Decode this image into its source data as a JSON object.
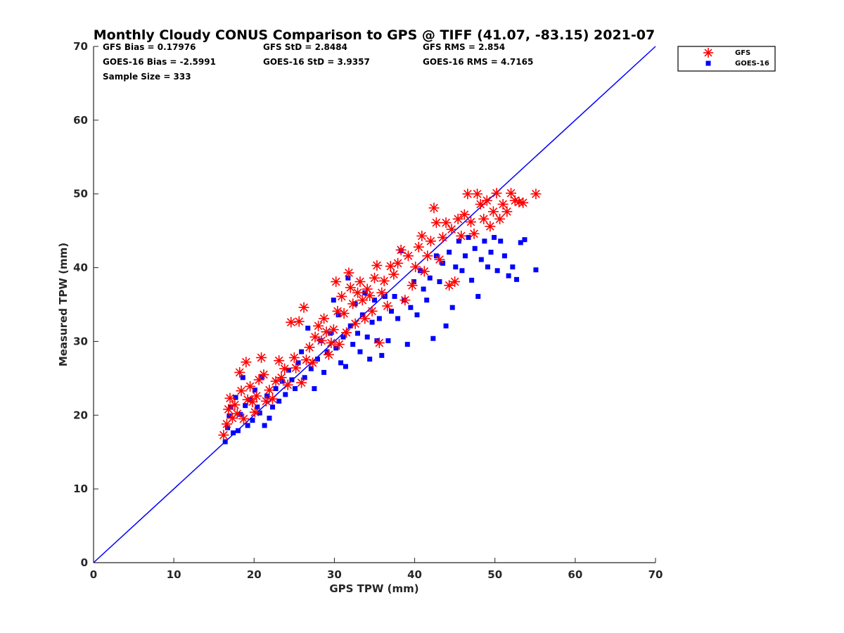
{
  "chart_data": {
    "type": "scatter",
    "title": "Monthly Cloudy CONUS Comparison to GPS @ TIFF (41.07, -83.15) 2021-07",
    "xlabel": "GPS TPW (mm)",
    "ylabel": "Measured TPW (mm)",
    "xlim": [
      0,
      70
    ],
    "ylim": [
      0,
      70
    ],
    "xticks": [
      "0",
      "10",
      "20",
      "30",
      "40",
      "50",
      "60",
      "70"
    ],
    "yticks": [
      "0",
      "10",
      "20",
      "30",
      "40",
      "50",
      "60",
      "70"
    ],
    "grid": false,
    "legend_placement": "outside-top-right",
    "reference_line": {
      "x": [
        0,
        70
      ],
      "y": [
        0,
        70
      ],
      "color": "#0000ff"
    },
    "stats": {
      "row1": [
        "GFS Bias = 0.17976",
        "GFS StD = 2.8484",
        "GFS RMS = 2.854"
      ],
      "row2": [
        "GOES-16 Bias = -2.5991",
        "GOES-16 StD = 3.9357",
        "GOES-16 RMS = 4.7165"
      ],
      "row3": [
        "Sample Size = 333"
      ]
    },
    "series": [
      {
        "name": "GFS",
        "marker": "asterisk",
        "color": "#ff0000",
        "points": [
          [
            16.2,
            17.3
          ],
          [
            16.6,
            18.8
          ],
          [
            16.8,
            20.8
          ],
          [
            17.0,
            22.3
          ],
          [
            17.3,
            19.6
          ],
          [
            17.6,
            21.4
          ],
          [
            17.9,
            20.2
          ],
          [
            18.2,
            25.8
          ],
          [
            18.4,
            23.3
          ],
          [
            18.7,
            19.5
          ],
          [
            19.0,
            27.2
          ],
          [
            19.2,
            22.1
          ],
          [
            19.5,
            23.9
          ],
          [
            19.8,
            21.8
          ],
          [
            20.1,
            20.4
          ],
          [
            20.3,
            22.6
          ],
          [
            20.6,
            24.8
          ],
          [
            20.9,
            27.8
          ],
          [
            21.2,
            25.5
          ],
          [
            21.5,
            21.9
          ],
          [
            21.9,
            23.4
          ],
          [
            22.3,
            22.2
          ],
          [
            22.7,
            24.6
          ],
          [
            23.1,
            27.4
          ],
          [
            23.4,
            25.1
          ],
          [
            23.8,
            26.3
          ],
          [
            24.2,
            24.1
          ],
          [
            24.6,
            32.6
          ],
          [
            25.0,
            27.8
          ],
          [
            25.2,
            26.4
          ],
          [
            25.6,
            32.7
          ],
          [
            25.9,
            24.4
          ],
          [
            26.2,
            34.6
          ],
          [
            26.5,
            27.5
          ],
          [
            26.9,
            29.2
          ],
          [
            27.3,
            27.1
          ],
          [
            27.6,
            30.6
          ],
          [
            28.0,
            32.1
          ],
          [
            28.4,
            30.1
          ],
          [
            28.7,
            33.1
          ],
          [
            29.0,
            31.3
          ],
          [
            29.3,
            28.2
          ],
          [
            29.6,
            29.8
          ],
          [
            29.9,
            31.6
          ],
          [
            30.2,
            38.1
          ],
          [
            30.4,
            34.1
          ],
          [
            30.6,
            29.6
          ],
          [
            30.9,
            36.1
          ],
          [
            31.2,
            33.8
          ],
          [
            31.5,
            31.2
          ],
          [
            31.8,
            39.3
          ],
          [
            32.0,
            37.3
          ],
          [
            32.3,
            35.1
          ],
          [
            32.6,
            32.4
          ],
          [
            32.9,
            36.6
          ],
          [
            33.2,
            38.1
          ],
          [
            33.5,
            35.6
          ],
          [
            33.8,
            33.1
          ],
          [
            34.1,
            37.1
          ],
          [
            34.4,
            36.2
          ],
          [
            34.7,
            34.1
          ],
          [
            35.0,
            38.6
          ],
          [
            35.3,
            40.3
          ],
          [
            35.6,
            29.8
          ],
          [
            35.9,
            36.6
          ],
          [
            36.2,
            38.2
          ],
          [
            36.6,
            34.8
          ],
          [
            37.0,
            40.2
          ],
          [
            37.4,
            39.1
          ],
          [
            37.9,
            40.6
          ],
          [
            38.3,
            42.4
          ],
          [
            38.8,
            35.6
          ],
          [
            39.2,
            41.6
          ],
          [
            39.7,
            37.6
          ],
          [
            40.1,
            40.1
          ],
          [
            40.5,
            42.8
          ],
          [
            40.9,
            44.3
          ],
          [
            41.2,
            39.5
          ],
          [
            41.6,
            41.6
          ],
          [
            42.0,
            43.6
          ],
          [
            42.4,
            48.1
          ],
          [
            42.7,
            46.1
          ],
          [
            43.1,
            41.1
          ],
          [
            43.5,
            44.1
          ],
          [
            43.9,
            46.1
          ],
          [
            44.3,
            37.6
          ],
          [
            44.6,
            45.2
          ],
          [
            45.0,
            38.1
          ],
          [
            45.4,
            46.6
          ],
          [
            45.8,
            44.3
          ],
          [
            46.2,
            47.2
          ],
          [
            46.6,
            50.0
          ],
          [
            47.0,
            46.2
          ],
          [
            47.4,
            44.6
          ],
          [
            47.8,
            50.0
          ],
          [
            48.2,
            48.6
          ],
          [
            48.6,
            46.6
          ],
          [
            49.0,
            49.1
          ],
          [
            49.4,
            45.6
          ],
          [
            49.8,
            47.6
          ],
          [
            50.2,
            50.1
          ],
          [
            50.6,
            46.6
          ],
          [
            51.0,
            48.6
          ],
          [
            51.5,
            47.6
          ],
          [
            52.0,
            50.1
          ],
          [
            52.5,
            49.1
          ],
          [
            53.0,
            48.9
          ],
          [
            53.5,
            48.8
          ],
          [
            55.1,
            50.0
          ]
        ]
      },
      {
        "name": "GOES-16",
        "marker": "square",
        "color": "#0000ff",
        "points": [
          [
            16.4,
            16.4
          ],
          [
            16.7,
            18.3
          ],
          [
            16.9,
            19.9
          ],
          [
            17.1,
            21.1
          ],
          [
            17.4,
            17.6
          ],
          [
            17.7,
            22.4
          ],
          [
            18.0,
            17.9
          ],
          [
            18.3,
            20.1
          ],
          [
            18.6,
            25.1
          ],
          [
            18.9,
            21.3
          ],
          [
            19.2,
            18.6
          ],
          [
            19.5,
            22.1
          ],
          [
            19.8,
            19.3
          ],
          [
            20.1,
            23.4
          ],
          [
            20.4,
            21.1
          ],
          [
            20.7,
            20.3
          ],
          [
            21.0,
            25.2
          ],
          [
            21.3,
            18.6
          ],
          [
            21.6,
            22.6
          ],
          [
            21.9,
            19.6
          ],
          [
            22.3,
            21.1
          ],
          [
            22.7,
            23.6
          ],
          [
            23.1,
            21.9
          ],
          [
            23.5,
            24.6
          ],
          [
            23.9,
            22.8
          ],
          [
            24.3,
            26.1
          ],
          [
            24.7,
            24.8
          ],
          [
            25.1,
            23.6
          ],
          [
            25.5,
            27.1
          ],
          [
            25.9,
            28.6
          ],
          [
            26.3,
            25.1
          ],
          [
            26.7,
            31.8
          ],
          [
            27.1,
            26.3
          ],
          [
            27.5,
            23.6
          ],
          [
            27.9,
            27.6
          ],
          [
            28.3,
            30.1
          ],
          [
            28.7,
            25.8
          ],
          [
            29.1,
            28.6
          ],
          [
            29.5,
            31.1
          ],
          [
            29.9,
            35.6
          ],
          [
            30.2,
            29.1
          ],
          [
            30.5,
            33.6
          ],
          [
            30.8,
            27.1
          ],
          [
            31.1,
            30.6
          ],
          [
            31.4,
            26.6
          ],
          [
            31.7,
            38.6
          ],
          [
            32.0,
            32.1
          ],
          [
            32.3,
            29.6
          ],
          [
            32.6,
            35.1
          ],
          [
            32.9,
            31.1
          ],
          [
            33.2,
            28.6
          ],
          [
            33.5,
            33.6
          ],
          [
            33.8,
            36.6
          ],
          [
            34.1,
            30.6
          ],
          [
            34.4,
            27.6
          ],
          [
            34.7,
            32.6
          ],
          [
            35.0,
            35.6
          ],
          [
            35.3,
            30.1
          ],
          [
            35.6,
            33.1
          ],
          [
            35.9,
            28.1
          ],
          [
            36.3,
            36.1
          ],
          [
            36.7,
            30.1
          ],
          [
            37.1,
            34.1
          ],
          [
            37.5,
            36.1
          ],
          [
            37.9,
            33.1
          ],
          [
            38.3,
            42.3
          ],
          [
            38.7,
            35.6
          ],
          [
            39.1,
            29.6
          ],
          [
            39.5,
            34.6
          ],
          [
            39.9,
            38.1
          ],
          [
            40.3,
            33.6
          ],
          [
            40.7,
            39.6
          ],
          [
            41.1,
            37.1
          ],
          [
            41.5,
            35.6
          ],
          [
            41.9,
            38.6
          ],
          [
            42.3,
            30.4
          ],
          [
            42.7,
            41.6
          ],
          [
            43.1,
            38.1
          ],
          [
            43.5,
            40.6
          ],
          [
            43.9,
            32.1
          ],
          [
            44.3,
            42.1
          ],
          [
            44.7,
            34.6
          ],
          [
            45.1,
            40.1
          ],
          [
            45.5,
            43.6
          ],
          [
            45.9,
            39.6
          ],
          [
            46.3,
            41.6
          ],
          [
            46.7,
            44.1
          ],
          [
            47.1,
            38.3
          ],
          [
            47.5,
            42.6
          ],
          [
            47.9,
            36.1
          ],
          [
            48.3,
            41.1
          ],
          [
            48.7,
            43.6
          ],
          [
            49.1,
            40.1
          ],
          [
            49.5,
            42.1
          ],
          [
            49.9,
            44.1
          ],
          [
            50.3,
            39.6
          ],
          [
            50.7,
            43.6
          ],
          [
            51.2,
            41.6
          ],
          [
            51.7,
            38.9
          ],
          [
            52.2,
            40.1
          ],
          [
            52.7,
            38.4
          ],
          [
            53.2,
            43.4
          ],
          [
            53.7,
            43.8
          ],
          [
            55.1,
            39.7
          ]
        ]
      }
    ]
  }
}
